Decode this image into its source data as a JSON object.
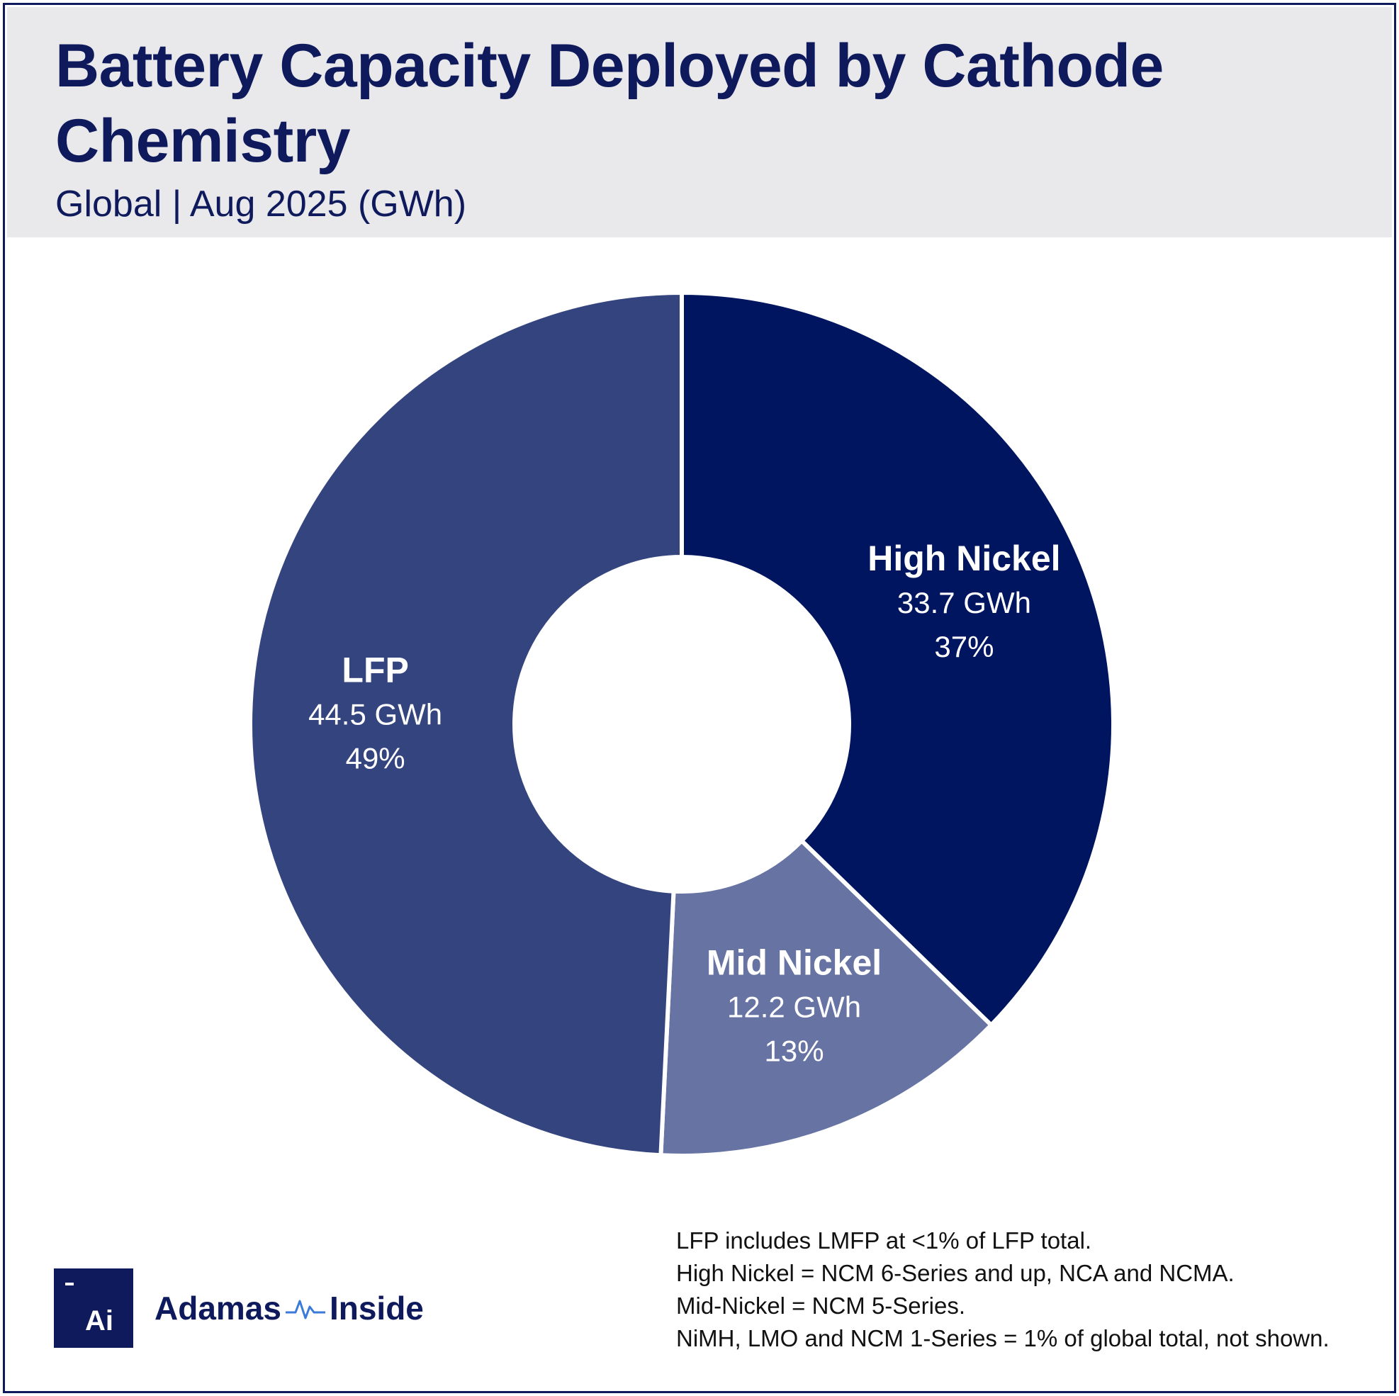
{
  "header": {
    "title": "Battery Capacity Deployed by Cathode Chemistry",
    "subtitle": "Global | Aug 2025 (GWh)"
  },
  "chart_data": {
    "type": "pie",
    "variant": "donut",
    "title": "Battery Capacity Deployed by Cathode Chemistry",
    "subtitle": "Global | Aug 2025 (GWh)",
    "unit": "GWh",
    "slices": [
      {
        "name": "High Nickel",
        "value": 33.7,
        "value_label": "33.7 GWh",
        "percent": 37,
        "percent_label": "37%",
        "color": "#001560"
      },
      {
        "name": "Mid Nickel",
        "value": 12.2,
        "value_label": "12.2 GWh",
        "percent": 13,
        "percent_label": "13%",
        "color": "#6673a3"
      },
      {
        "name": "LFP",
        "value": 44.5,
        "value_label": "44.5 GWh",
        "percent": 49,
        "percent_label": "49%",
        "color": "#34447e"
      }
    ],
    "start_angle": "12 o'clock",
    "direction": "clockwise"
  },
  "notes": [
    "LFP includes LMFP at <1% of LFP total.",
    "High Nickel = NCM 6-Series and up, NCA and NCMA.",
    "Mid-Nickel = NCM 5-Series.",
    "NiMH, LMO and NCM 1-Series = 1% of global total, not shown."
  ],
  "brand": {
    "logo_text": "Ai",
    "name_left": "Adamas",
    "name_right": "Inside",
    "color": "#0f1a5c"
  }
}
